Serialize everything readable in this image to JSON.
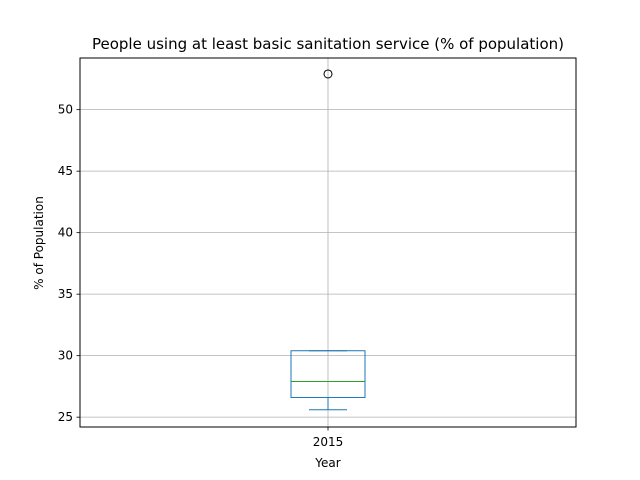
{
  "chart_data": {
    "type": "box",
    "title": "People using at least basic sanitation service (% of  population)",
    "xlabel": "Year",
    "ylabel": "% of Population",
    "categories": [
      "2015"
    ],
    "ylim": [
      24.2,
      54.2
    ],
    "yticks": [
      25,
      30,
      35,
      40,
      45,
      50
    ],
    "grid": true,
    "boxes": [
      {
        "category": "2015",
        "whisker_low": 25.6,
        "q1": 26.6,
        "median": 27.9,
        "q3": 30.4,
        "whisker_high": 30.4,
        "outliers": [
          52.9
        ]
      }
    ],
    "colors": {
      "box": "#1f77b4",
      "median": "#2ca02c",
      "grid": "#b0b0b0",
      "outlier_edge": "#000000"
    }
  }
}
